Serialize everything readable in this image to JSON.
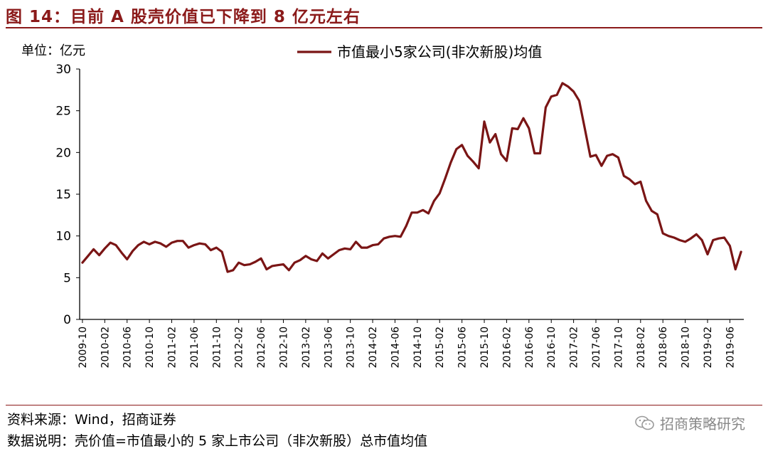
{
  "figure": {
    "title": "图 14：目前 A 股壳价值已下降到 8 亿元左右",
    "source": "资料来源：Wind，招商证券",
    "note": "数据说明：壳价值=市值最小的 5 家上市公司（非次新股）总市值均值",
    "brand": "招商策略研究"
  },
  "colors": {
    "accent": "#8B1A1A",
    "line": "#7A1515"
  },
  "chart_data": {
    "type": "line",
    "unit_label": "单位：亿元",
    "ylim": [
      0,
      30
    ],
    "yticks": [
      0,
      5,
      10,
      15,
      20,
      25,
      30
    ],
    "legend": "top-center",
    "grid": false,
    "xtick_labels": [
      "2009-10",
      "2010-02",
      "2010-06",
      "2010-10",
      "2011-02",
      "2011-06",
      "2011-10",
      "2012-02",
      "2012-06",
      "2012-10",
      "2013-02",
      "2013-06",
      "2013-10",
      "2014-02",
      "2014-06",
      "2014-10",
      "2015-02",
      "2015-06",
      "2015-10",
      "2016-02",
      "2016-06",
      "2016-10",
      "2017-02",
      "2017-06",
      "2017-10",
      "2018-02",
      "2018-06",
      "2018-10",
      "2019-02",
      "2019-06"
    ],
    "series": [
      {
        "name": "市值最小5家公司(非次新股)均值",
        "start": "2009-10",
        "values": [
          6.8,
          7.6,
          8.4,
          7.7,
          8.5,
          9.2,
          8.9,
          8.0,
          7.2,
          8.2,
          8.9,
          9.3,
          9.0,
          9.3,
          9.1,
          8.7,
          9.2,
          9.4,
          9.4,
          8.6,
          8.9,
          9.1,
          9.0,
          8.3,
          8.6,
          8.1,
          5.7,
          5.9,
          6.8,
          6.5,
          6.6,
          6.9,
          7.3,
          6.0,
          6.4,
          6.5,
          6.6,
          5.9,
          6.8,
          7.1,
          7.6,
          7.2,
          7.0,
          7.9,
          7.3,
          7.8,
          8.3,
          8.5,
          8.4,
          9.3,
          8.6,
          8.6,
          8.9,
          9.0,
          9.7,
          9.9,
          10.0,
          9.9,
          11.2,
          12.8,
          12.8,
          13.1,
          12.7,
          14.2,
          15.1,
          16.9,
          18.8,
          20.4,
          20.9,
          19.6,
          18.9,
          18.1,
          23.7,
          21.2,
          22.2,
          19.8,
          19.0,
          22.9,
          22.8,
          24.1,
          22.9,
          19.9,
          19.9,
          25.4,
          26.7,
          26.9,
          28.3,
          27.9,
          27.3,
          26.2,
          22.9,
          19.5,
          19.7,
          18.4,
          19.6,
          19.8,
          19.4,
          17.2,
          16.8,
          16.2,
          16.5,
          14.2,
          13.0,
          12.6,
          10.3,
          10.0,
          9.8,
          9.5,
          9.3,
          9.7,
          10.2,
          9.5,
          7.8,
          9.5,
          9.7,
          9.8,
          8.8,
          6.0,
          8.1
        ]
      }
    ]
  }
}
